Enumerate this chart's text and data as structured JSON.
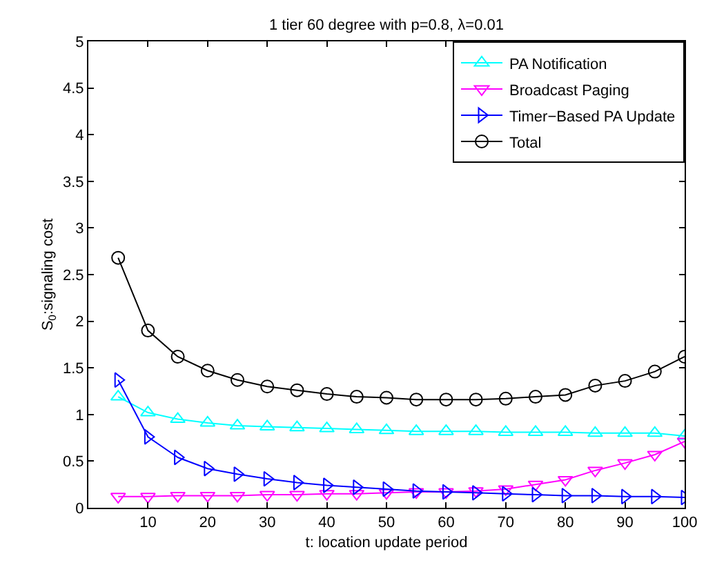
{
  "chart_data": {
    "type": "line",
    "title": "1 tier 60 degree with p=0.8, λ=0.01",
    "xlabel": "t: location update period",
    "ylabel": "S$_{0}$:signaling cost",
    "x": [
      5,
      10,
      15,
      20,
      25,
      30,
      35,
      40,
      45,
      50,
      55,
      60,
      65,
      70,
      75,
      80,
      85,
      90,
      95,
      100
    ],
    "series": [
      {
        "name": "PA Notification",
        "color": "#00ffff",
        "marker": "triangle-up",
        "values": [
          1.19,
          1.02,
          0.95,
          0.91,
          0.88,
          0.87,
          0.86,
          0.85,
          0.84,
          0.83,
          0.82,
          0.82,
          0.82,
          0.81,
          0.81,
          0.81,
          0.8,
          0.8,
          0.8,
          0.77
        ]
      },
      {
        "name": "Broadcast Paging",
        "color": "#ff00ff",
        "marker": "triangle-down",
        "values": [
          0.12,
          0.12,
          0.13,
          0.13,
          0.13,
          0.14,
          0.14,
          0.15,
          0.15,
          0.16,
          0.17,
          0.17,
          0.18,
          0.2,
          0.25,
          0.3,
          0.4,
          0.48,
          0.57,
          0.71
        ]
      },
      {
        "name": "Timer−Based PA Update",
        "color": "#0000ff",
        "marker": "triangle-right",
        "values": [
          1.37,
          0.76,
          0.54,
          0.42,
          0.36,
          0.31,
          0.27,
          0.24,
          0.22,
          0.2,
          0.18,
          0.17,
          0.16,
          0.15,
          0.14,
          0.13,
          0.13,
          0.12,
          0.12,
          0.11
        ]
      },
      {
        "name": "Total",
        "color": "#000000",
        "marker": "circle",
        "values": [
          2.68,
          1.9,
          1.62,
          1.47,
          1.37,
          1.3,
          1.26,
          1.22,
          1.19,
          1.18,
          1.16,
          1.16,
          1.16,
          1.17,
          1.19,
          1.21,
          1.31,
          1.36,
          1.46,
          1.62
        ]
      }
    ],
    "xlim": [
      0,
      100
    ],
    "xticks": [
      10,
      20,
      30,
      40,
      50,
      60,
      70,
      80,
      90,
      100
    ],
    "ylim": [
      0,
      5
    ],
    "yticks": [
      0,
      0.5,
      1,
      1.5,
      2,
      2.5,
      3,
      3.5,
      4,
      4.5,
      5
    ],
    "legend": "top right",
    "line_style": "solid"
  }
}
